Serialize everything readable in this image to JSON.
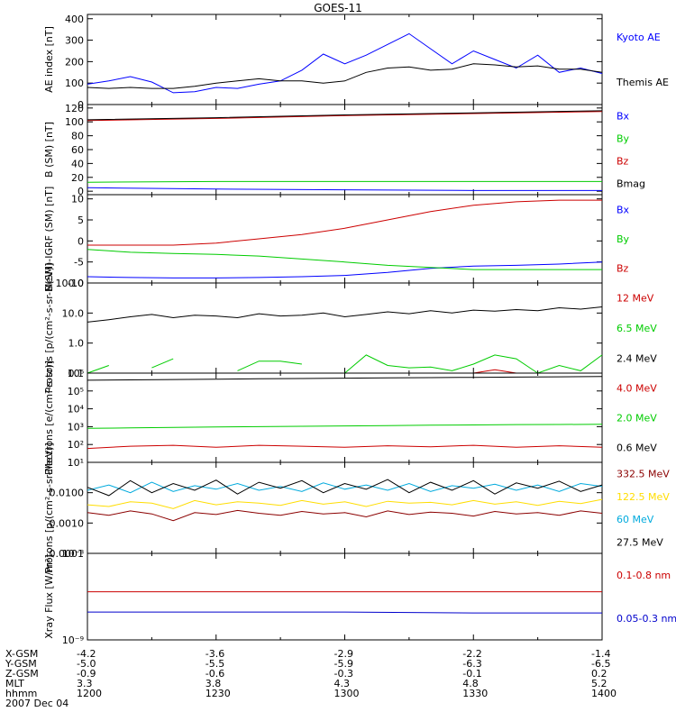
{
  "title": "GOES-11",
  "footer": {
    "rows": [
      {
        "label": "X-GSM",
        "values": [
          "-4.2",
          "-3.6",
          "-2.9",
          "-2.2",
          "-1.4"
        ]
      },
      {
        "label": "Y-GSM",
        "values": [
          "-5.0",
          "-5.5",
          "-5.9",
          "-6.3",
          "-6.5"
        ]
      },
      {
        "label": "Z-GSM",
        "values": [
          "-0.9",
          "-0.6",
          "-0.3",
          "-0.1",
          "0.2"
        ]
      },
      {
        "label": "MLT",
        "values": [
          "3.3",
          "3.8",
          "4.3",
          "4.8",
          "5.2"
        ]
      },
      {
        "label": "hhmm",
        "values": [
          "1200",
          "1230",
          "1300",
          "1330",
          "1400"
        ]
      }
    ],
    "date": "2007 Dec 04"
  },
  "chart_data": [
    {
      "type": "line",
      "ylabel": "AE index [nT]",
      "ylim": [
        0,
        420
      ],
      "yticks": [
        "0",
        "100",
        "200",
        "300",
        "400"
      ],
      "yticks_values": [
        0,
        100,
        200,
        300,
        400
      ],
      "scale": "linear",
      "x": [
        1200,
        1205,
        1210,
        1215,
        1220,
        1225,
        1230,
        1235,
        1240,
        1245,
        1250,
        1255,
        1300,
        1305,
        1310,
        1315,
        1320,
        1325,
        1330,
        1335,
        1340,
        1345,
        1350,
        1355,
        1400
      ],
      "series": [
        {
          "name": "Kyoto AE",
          "color": "#0000ff",
          "values": [
            95,
            110,
            130,
            105,
            55,
            60,
            80,
            75,
            95,
            110,
            160,
            235,
            190,
            230,
            280,
            330,
            260,
            190,
            250,
            210,
            170,
            230,
            150,
            170,
            145
          ]
        },
        {
          "name": "Themis AE",
          "color": "#000000",
          "values": [
            80,
            75,
            80,
            75,
            75,
            85,
            100,
            110,
            120,
            110,
            110,
            100,
            110,
            150,
            170,
            175,
            160,
            165,
            190,
            185,
            175,
            180,
            165,
            165,
            150
          ]
        }
      ]
    },
    {
      "type": "line",
      "ylabel": "B (SM) [nT]",
      "ylim": [
        -5,
        125
      ],
      "yticks": [
        "0",
        "20",
        "40",
        "60",
        "80",
        "100",
        "120"
      ],
      "yticks_values": [
        0,
        20,
        40,
        60,
        80,
        100,
        120
      ],
      "scale": "linear",
      "x": [
        1200,
        1230,
        1300,
        1330,
        1400
      ],
      "series": [
        {
          "name": "Bx",
          "color": "#0000ff",
          "values": [
            5,
            3,
            2,
            1,
            1
          ]
        },
        {
          "name": "By",
          "color": "#00cc00",
          "values": [
            13,
            14,
            14,
            14,
            14
          ]
        },
        {
          "name": "Bz",
          "color": "#cc0000",
          "values": [
            102,
            105,
            109,
            112,
            115
          ]
        },
        {
          "name": "Bmag",
          "color": "#000000",
          "values": [
            103,
            106,
            110,
            113,
            116
          ]
        }
      ]
    },
    {
      "type": "line",
      "ylabel": "B(SM)-IGRF (SM) [nT]",
      "ylim": [
        -10,
        11
      ],
      "yticks": [
        "-10",
        "-5",
        "0",
        "5",
        "10"
      ],
      "yticks_values": [
        -10,
        -5,
        0,
        5,
        10
      ],
      "scale": "linear",
      "x": [
        1200,
        1210,
        1220,
        1230,
        1240,
        1250,
        1300,
        1310,
        1320,
        1330,
        1340,
        1350,
        1400
      ],
      "series": [
        {
          "name": "Bx",
          "color": "#0000ff",
          "values": [
            -8.5,
            -8.7,
            -8.8,
            -8.8,
            -8.7,
            -8.5,
            -8.2,
            -7.5,
            -6.5,
            -6.0,
            -5.8,
            -5.5,
            -5.0
          ]
        },
        {
          "name": "By",
          "color": "#00cc00",
          "values": [
            -2.0,
            -2.7,
            -3.0,
            -3.2,
            -3.6,
            -4.3,
            -5.0,
            -5.8,
            -6.3,
            -6.8,
            -6.8,
            -6.8,
            -6.8
          ]
        },
        {
          "name": "Bz",
          "color": "#cc0000",
          "values": [
            -1.0,
            -1.0,
            -1.0,
            -0.5,
            0.5,
            1.5,
            3.0,
            5.0,
            7.0,
            8.5,
            9.3,
            9.7,
            9.7
          ]
        }
      ]
    },
    {
      "type": "line",
      "ylabel": "Protons [p/(cm²-s-sr-MeV)]",
      "ylim": [
        0.1,
        100.0
      ],
      "yticks": [
        "0.1",
        "1.0",
        "10.0",
        "100.0"
      ],
      "yticks_values": [
        0.1,
        1.0,
        10.0,
        100.0
      ],
      "scale": "log",
      "x": [
        1200,
        1205,
        1210,
        1215,
        1220,
        1225,
        1230,
        1235,
        1240,
        1245,
        1250,
        1255,
        1300,
        1305,
        1310,
        1315,
        1320,
        1325,
        1330,
        1335,
        1340,
        1345,
        1350,
        1355,
        1400
      ],
      "series": [
        {
          "name": "12 MeV",
          "color": "#cc0000",
          "values": [
            null,
            null,
            null,
            null,
            null,
            null,
            null,
            null,
            null,
            null,
            null,
            null,
            null,
            null,
            null,
            null,
            null,
            null,
            0.1,
            0.13,
            0.1,
            null,
            0.13,
            null,
            0.1
          ]
        },
        {
          "name": "6.5 MeV",
          "color": "#00cc00",
          "values": [
            0.1,
            0.18,
            null,
            0.15,
            0.3,
            null,
            null,
            0.12,
            0.25,
            0.25,
            0.2,
            null,
            0.1,
            0.4,
            0.18,
            0.15,
            0.16,
            0.12,
            0.2,
            0.4,
            0.3,
            0.1,
            0.18,
            0.12,
            0.4
          ]
        },
        {
          "name": "2.4 MeV",
          "color": "#000000",
          "values": [
            5.0,
            6.0,
            7.5,
            9.0,
            7.0,
            8.5,
            8.0,
            7.0,
            9.5,
            8.0,
            8.5,
            10.0,
            7.5,
            9.0,
            11.0,
            9.5,
            12.0,
            10.0,
            12.5,
            11.5,
            13.0,
            12.0,
            15.0,
            13.5,
            16.0
          ]
        }
      ]
    },
    {
      "type": "line",
      "ylabel": "Electrons [e/(cm²-s-sr)]",
      "ylim": [
        10,
        1000000
      ],
      "yticks": [
        "10¹",
        "10²",
        "10³",
        "10⁴",
        "10⁵",
        "10⁶"
      ],
      "yticks_values": [
        10,
        100,
        1000,
        10000,
        100000,
        1000000
      ],
      "scale": "log",
      "x": [
        1200,
        1210,
        1220,
        1230,
        1240,
        1250,
        1300,
        1310,
        1320,
        1330,
        1340,
        1350,
        1400
      ],
      "series": [
        {
          "name": "4.0 MeV",
          "color": "#cc0000",
          "values": [
            60,
            80,
            90,
            70,
            90,
            80,
            70,
            85,
            75,
            90,
            70,
            85,
            70
          ]
        },
        {
          "name": "2.0 MeV",
          "color": "#00cc00",
          "values": [
            800,
            850,
            900,
            950,
            1000,
            1050,
            1100,
            1150,
            1200,
            1250,
            1300,
            1320,
            1350
          ]
        },
        {
          "name": "0.6 MeV",
          "color": "#000000",
          "values": [
            400000,
            420000,
            440000,
            460000,
            480000,
            500000,
            520000,
            540000,
            560000,
            580000,
            600000,
            620000,
            640000
          ]
        }
      ]
    },
    {
      "type": "line",
      "ylabel": "Protons [p/(cm²-s-sr-MeV)]",
      "ylim": [
        0.0001,
        0.1
      ],
      "yticks": [
        "0.0001",
        "0.0010",
        "0.0100"
      ],
      "yticks_values": [
        0.0001,
        0.001,
        0.01
      ],
      "scale": "log",
      "x": [
        1200,
        1205,
        1210,
        1215,
        1220,
        1225,
        1230,
        1235,
        1240,
        1245,
        1250,
        1255,
        1300,
        1305,
        1310,
        1315,
        1320,
        1325,
        1330,
        1335,
        1340,
        1345,
        1350,
        1355,
        1400
      ],
      "series": [
        {
          "name": "332.5 MeV",
          "color": "#8b0000",
          "values": [
            0.0022,
            0.0018,
            0.0025,
            0.002,
            0.0012,
            0.0022,
            0.0019,
            0.0026,
            0.0021,
            0.0018,
            0.0024,
            0.002,
            0.0022,
            0.0016,
            0.0025,
            0.0019,
            0.0023,
            0.0021,
            0.0017,
            0.0024,
            0.002,
            0.0022,
            0.0018,
            0.0025,
            0.0021
          ]
        },
        {
          "name": "122.5 MeV",
          "color": "#ffdd00",
          "values": [
            0.004,
            0.0035,
            0.005,
            0.0045,
            0.003,
            0.0055,
            0.004,
            0.005,
            0.0045,
            0.0038,
            0.0055,
            0.0042,
            0.005,
            0.0035,
            0.0052,
            0.0045,
            0.0048,
            0.004,
            0.0055,
            0.0042,
            0.005,
            0.0038,
            0.0052,
            0.0044,
            0.006
          ]
        },
        {
          "name": "60 MeV",
          "color": "#00aadd",
          "values": [
            0.012,
            0.018,
            0.01,
            0.022,
            0.011,
            0.017,
            0.013,
            0.02,
            0.012,
            0.016,
            0.011,
            0.021,
            0.013,
            0.018,
            0.012,
            0.02,
            0.011,
            0.017,
            0.014,
            0.019,
            0.012,
            0.018,
            0.011,
            0.02,
            0.016
          ]
        },
        {
          "name": "27.5 MeV",
          "color": "#000000",
          "values": [
            0.015,
            0.008,
            0.025,
            0.01,
            0.02,
            0.012,
            0.026,
            0.009,
            0.022,
            0.014,
            0.025,
            0.01,
            0.02,
            0.013,
            0.027,
            0.01,
            0.022,
            0.012,
            0.025,
            0.009,
            0.021,
            0.014,
            0.024,
            0.011,
            0.018
          ]
        }
      ]
    },
    {
      "type": "line",
      "ylabel": "Xray Flux [W/m²]",
      "ylim": [
        1e-09,
        1e-08
      ],
      "yticks": [
        "10⁻⁹",
        "10⁻⁸"
      ],
      "yticks_values": [
        1e-09,
        1e-08
      ],
      "scale": "log",
      "x": [
        1200,
        1230,
        1300,
        1330,
        1400
      ],
      "series": [
        {
          "name": "0.1-0.8 nm",
          "color": "#cc0000",
          "values": [
            3.6e-09,
            3.6e-09,
            3.6e-09,
            3.6e-09,
            3.6e-09
          ]
        },
        {
          "name": "0.05-0.3 nm",
          "color": "#0000cc",
          "values": [
            2.1e-09,
            2.1e-09,
            2.1e-09,
            2.05e-09,
            2.05e-09
          ]
        }
      ]
    }
  ]
}
